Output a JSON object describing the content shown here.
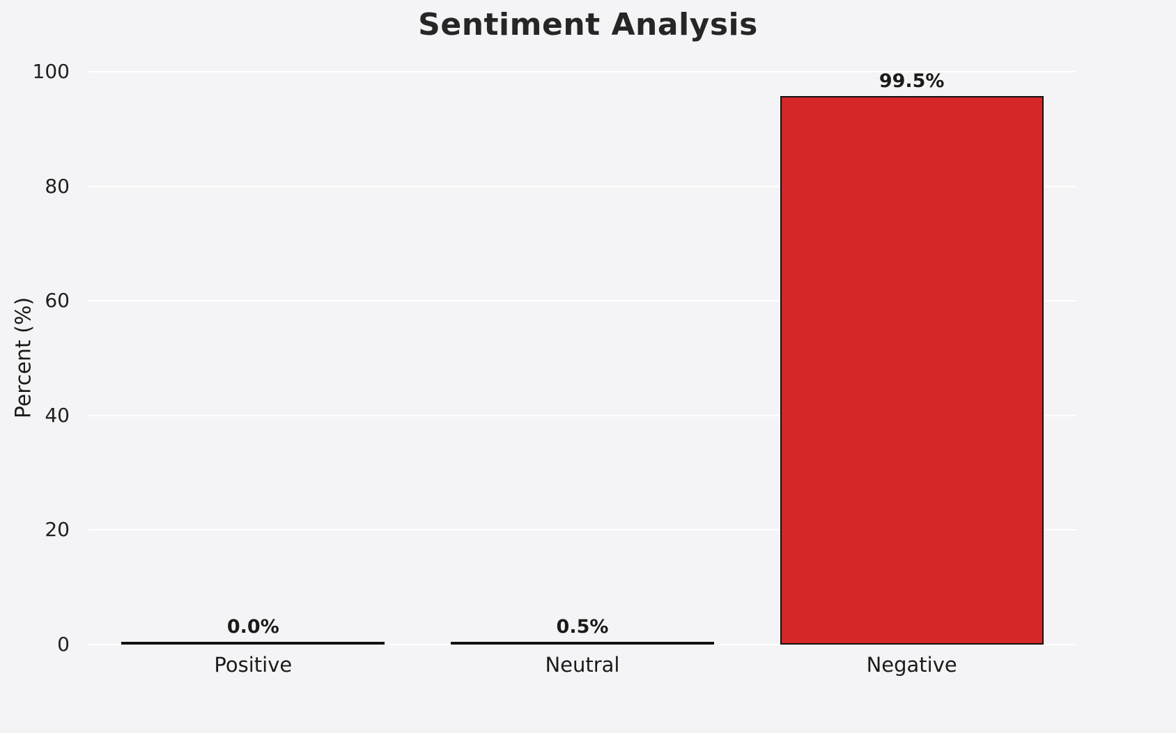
{
  "chart_data": {
    "type": "bar",
    "title": "Sentiment Analysis",
    "xlabel": "",
    "ylabel": "Percent (%)",
    "ylim": [
      0,
      100
    ],
    "yticks": [
      0,
      20,
      40,
      60,
      80,
      100
    ],
    "grid": "horizontal white gridlines on",
    "legend_position": "none",
    "categories": [
      "Positive",
      "Neutral",
      "Negative"
    ],
    "values": [
      0.0,
      0.5,
      99.5
    ],
    "value_labels": [
      "0.0%",
      "0.5%",
      "99.5%"
    ],
    "bar_colors": [
      "#f4f4f6",
      "#f0e442",
      "#d62728"
    ],
    "bar_edge_color": "#111111",
    "background_color": "#f4f4f6"
  }
}
